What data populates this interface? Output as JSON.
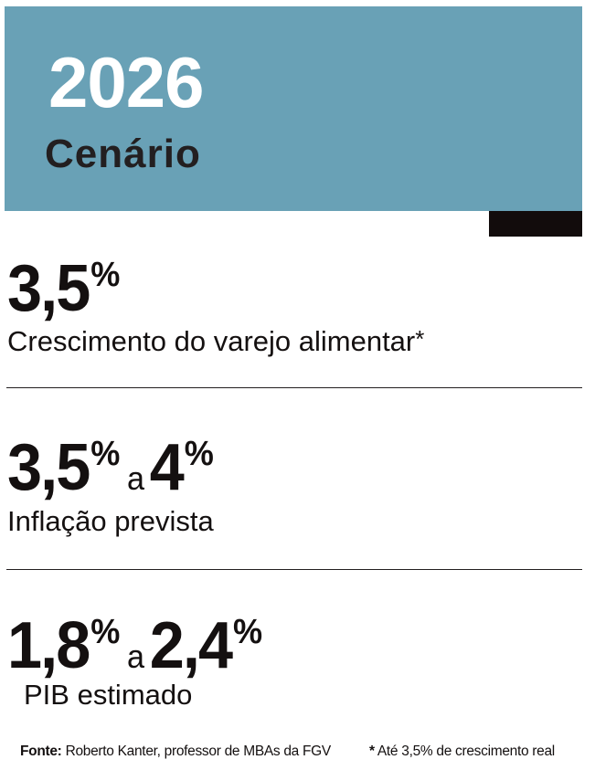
{
  "header": {
    "year": "2026",
    "subtitle": "Cenário",
    "background_color": "#69a1b6"
  },
  "stats": [
    {
      "value": "3,5",
      "unit": "%",
      "label": "Crescimento do varejo alimentar",
      "label_mark": "*"
    },
    {
      "value": "3,5",
      "unit": "%",
      "connector": "a",
      "value2": "4",
      "unit2": "%",
      "label": "Inflação prevista"
    },
    {
      "value": "1,8",
      "unit": "%",
      "connector": "a",
      "value2": "2,4",
      "unit2": "%",
      "label": "PIB estimado"
    }
  ],
  "footer": {
    "source_label": "Fonte:",
    "source_text": "Roberto Kanter, professor de MBAs da FGV",
    "note_mark": "*",
    "note_text": "Até 3,5% de crescimento real"
  }
}
